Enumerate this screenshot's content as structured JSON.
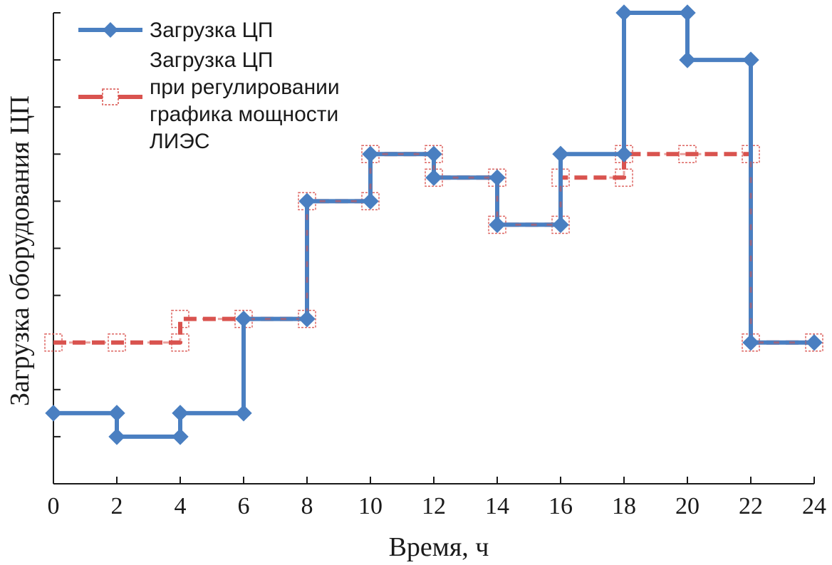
{
  "chart_data": {
    "type": "line",
    "step": true,
    "title": "",
    "xlabel": "Время, ч",
    "ylabel": "Загрузка оборудования ЦП",
    "xlim": [
      0,
      24
    ],
    "ylim": [
      0,
      20
    ],
    "x_ticks": [
      0,
      2,
      4,
      6,
      8,
      10,
      12,
      14,
      16,
      18,
      20,
      22,
      24
    ],
    "y_ticks": [
      0,
      2,
      4,
      6,
      8,
      10,
      12,
      14,
      16,
      18,
      20
    ],
    "y_tick_labels_visible": false,
    "grid": false,
    "legend_position": "top-left",
    "series": [
      {
        "name": "Загрузка ЦП",
        "legend_lines": [
          "Загрузка ЦП"
        ],
        "color": "#4a7fc1",
        "marker": "diamond",
        "line_style": "solid",
        "points": [
          [
            0,
            3
          ],
          [
            2,
            3
          ],
          [
            2,
            2
          ],
          [
            4,
            2
          ],
          [
            4,
            3
          ],
          [
            6,
            3
          ],
          [
            6,
            7
          ],
          [
            8,
            7
          ],
          [
            8,
            12
          ],
          [
            10,
            12
          ],
          [
            10,
            14
          ],
          [
            12,
            14
          ],
          [
            12,
            13
          ],
          [
            14,
            13
          ],
          [
            14,
            11
          ],
          [
            16,
            11
          ],
          [
            16,
            14
          ],
          [
            18,
            14
          ],
          [
            18,
            20
          ],
          [
            20,
            20
          ],
          [
            20,
            18
          ],
          [
            22,
            18
          ],
          [
            22,
            6
          ],
          [
            24,
            6
          ]
        ]
      },
      {
        "name": "Загрузка ЦП при регулировании графика мощности ЛИЭС",
        "legend_lines": [
          "Загрузка ЦП",
          "при регулировании",
          "графика мощности",
          "ЛИЭС"
        ],
        "color": "#d9534f",
        "marker": "square-dashed",
        "line_style": "dashed",
        "points": [
          [
            0,
            6
          ],
          [
            2,
            6
          ],
          [
            4,
            6
          ],
          [
            4,
            7
          ],
          [
            6,
            7
          ],
          [
            8,
            7
          ],
          [
            8,
            12
          ],
          [
            10,
            12
          ],
          [
            10,
            14
          ],
          [
            12,
            14
          ],
          [
            12,
            13
          ],
          [
            14,
            13
          ],
          [
            14,
            11
          ],
          [
            16,
            11
          ],
          [
            16,
            13
          ],
          [
            18,
            13
          ],
          [
            18,
            14
          ],
          [
            20,
            14
          ],
          [
            22,
            14
          ],
          [
            22,
            6
          ],
          [
            24,
            6
          ]
        ]
      }
    ]
  }
}
